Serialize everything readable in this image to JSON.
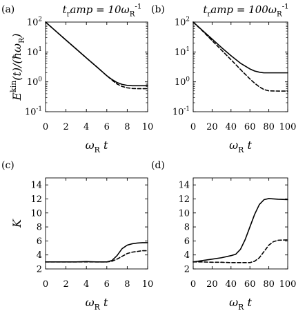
{
  "chart_data": [
    {
      "panel": "(a)",
      "type": "line",
      "title": "t_ramp = 10ω_R^{-1}",
      "xlabel": "ω_R t",
      "ylabel": "E^kin(t)/(ħω_R)",
      "xlim": [
        0,
        10
      ],
      "ylim": [
        0.1,
        100
      ],
      "yscale": "log",
      "xticks": [
        "0",
        "2",
        "4",
        "6",
        "8",
        "10"
      ],
      "yticks": [
        "10^{-1}",
        "10^{0}",
        "10^{1}",
        "10^{2}"
      ],
      "series": [
        {
          "style": "solid",
          "x": [
            0,
            1,
            2,
            3,
            4,
            5,
            6,
            6.5,
            7,
            7.5,
            8,
            8.5,
            9,
            9.5,
            10
          ],
          "y": [
            100,
            50,
            25,
            12.6,
            6.3,
            3.2,
            1.6,
            1.2,
            0.95,
            0.82,
            0.76,
            0.74,
            0.74,
            0.74,
            0.74
          ]
        },
        {
          "style": "dashed",
          "x": [
            0,
            1,
            2,
            3,
            4,
            5,
            6,
            6.5,
            7,
            7.5,
            8,
            8.5,
            9,
            9.5,
            10
          ],
          "y": [
            100,
            50,
            25,
            12.6,
            6.3,
            3.2,
            1.6,
            1.15,
            0.85,
            0.7,
            0.63,
            0.6,
            0.59,
            0.59,
            0.59
          ]
        }
      ]
    },
    {
      "panel": "(b)",
      "type": "line",
      "title": "t_ramp = 100ω_R^{-1}",
      "xlabel": "ω_R t",
      "ylabel": "",
      "xlim": [
        0,
        100
      ],
      "ylim": [
        0.1,
        100
      ],
      "yscale": "log",
      "xticks": [
        "0",
        "20",
        "40",
        "60",
        "80",
        "100"
      ],
      "yticks": [
        "10^{-1}",
        "10^{0}",
        "10^{1}",
        "10^{2}"
      ],
      "series": [
        {
          "style": "solid",
          "x": [
            0,
            10,
            20,
            30,
            40,
            50,
            60,
            65,
            70,
            75,
            80,
            90,
            100
          ],
          "y": [
            100,
            52,
            27,
            14,
            7.5,
            4.2,
            2.7,
            2.3,
            2.1,
            2.0,
            2.0,
            2.0,
            2.0
          ]
        },
        {
          "style": "dashed",
          "x": [
            0,
            10,
            20,
            30,
            40,
            50,
            60,
            65,
            70,
            75,
            80,
            90,
            100
          ],
          "y": [
            100,
            50,
            24,
            11.5,
            5.5,
            2.6,
            1.25,
            0.9,
            0.68,
            0.55,
            0.5,
            0.49,
            0.49
          ]
        }
      ]
    },
    {
      "panel": "(c)",
      "type": "line",
      "title": "",
      "xlabel": "ω_R t",
      "ylabel": "K",
      "xlim": [
        0,
        10
      ],
      "ylim": [
        2,
        15
      ],
      "yscale": "linear",
      "xticks": [
        "0",
        "2",
        "4",
        "6",
        "8",
        "10"
      ],
      "yticks": [
        "2",
        "4",
        "6",
        "8",
        "10",
        "12",
        "14"
      ],
      "series": [
        {
          "style": "solid",
          "x": [
            0,
            1,
            2,
            3,
            4,
            5,
            6,
            6.5,
            7,
            7.5,
            8,
            8.5,
            9,
            9.5,
            10
          ],
          "y": [
            3.0,
            3.0,
            3.0,
            3.0,
            3.05,
            3.0,
            3.0,
            3.2,
            3.9,
            4.9,
            5.4,
            5.6,
            5.7,
            5.75,
            5.75
          ]
        },
        {
          "style": "dashed",
          "x": [
            0,
            1,
            2,
            3,
            4,
            5,
            6,
            6.5,
            7,
            7.5,
            8,
            8.5,
            9,
            9.5,
            10
          ],
          "y": [
            3.0,
            3.0,
            3.0,
            3.0,
            3.0,
            3.0,
            3.0,
            3.1,
            3.4,
            3.8,
            4.2,
            4.4,
            4.5,
            4.6,
            4.6
          ]
        }
      ]
    },
    {
      "panel": "(d)",
      "type": "line",
      "title": "",
      "xlabel": "ω_R t",
      "ylabel": "",
      "xlim": [
        0,
        100
      ],
      "ylim": [
        2,
        15
      ],
      "yscale": "linear",
      "xticks": [
        "0",
        "20",
        "40",
        "60",
        "80",
        "100"
      ],
      "yticks": [
        "2",
        "4",
        "6",
        "8",
        "10",
        "12",
        "14"
      ],
      "series": [
        {
          "style": "solid",
          "x": [
            0,
            10,
            20,
            30,
            40,
            45,
            50,
            55,
            60,
            65,
            70,
            75,
            80,
            85,
            90,
            100
          ],
          "y": [
            3.0,
            3.2,
            3.4,
            3.6,
            3.9,
            4.1,
            4.8,
            6.2,
            8.0,
            9.8,
            11.2,
            11.9,
            12.05,
            12.0,
            11.95,
            11.9
          ]
        },
        {
          "style": "dashed",
          "x": [
            0,
            10,
            20,
            30,
            40,
            50,
            60,
            65,
            70,
            75,
            80,
            85,
            90,
            100
          ],
          "y": [
            3.0,
            3.0,
            2.95,
            2.95,
            2.9,
            2.9,
            2.9,
            3.1,
            3.6,
            4.5,
            5.4,
            5.9,
            6.1,
            6.15
          ]
        }
      ]
    }
  ]
}
